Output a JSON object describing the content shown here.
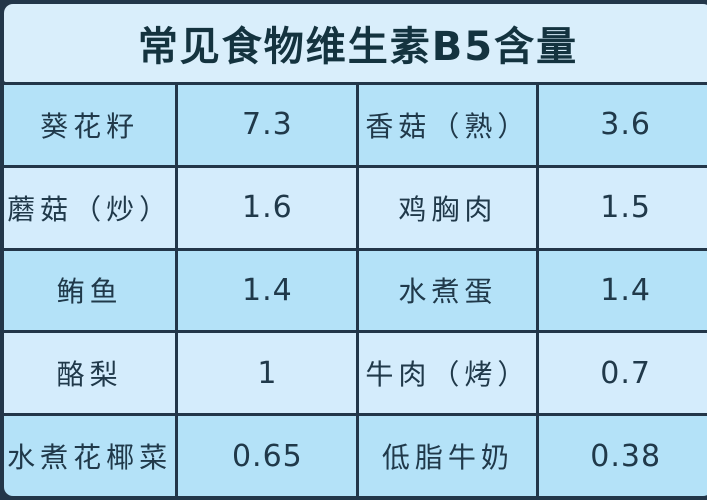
{
  "title": "常见食物维生素B5含量",
  "colors": {
    "background_border": "#223649",
    "title_background": "#d9eefb",
    "row_odd_background": "#b4e2f8",
    "row_even_background": "#d4ecfc",
    "title_text": "#14333f",
    "cell_text": "#20394a"
  },
  "table": {
    "rows": [
      {
        "cells": [
          "葵花籽",
          "7.3",
          "香菇（熟）",
          "3.6"
        ]
      },
      {
        "cells": [
          "蘑菇（炒）",
          "1.6",
          "鸡胸肉",
          "1.5"
        ]
      },
      {
        "cells": [
          "鲔鱼",
          "1.4",
          "水煮蛋",
          "1.4"
        ]
      },
      {
        "cells": [
          "酪梨",
          "1",
          "牛肉（烤）",
          "0.7"
        ]
      },
      {
        "cells": [
          "水煮花椰菜",
          "0.65",
          "低脂牛奶",
          "0.38"
        ]
      }
    ]
  },
  "chart_data": {
    "type": "table",
    "title": "常见食物维生素B5含量",
    "items": [
      {
        "food": "葵花籽",
        "value": 7.3
      },
      {
        "food": "香菇（熟）",
        "value": 3.6
      },
      {
        "food": "蘑菇（炒）",
        "value": 1.6
      },
      {
        "food": "鸡胸肉",
        "value": 1.5
      },
      {
        "food": "鲔鱼",
        "value": 1.4
      },
      {
        "food": "水煮蛋",
        "value": 1.4
      },
      {
        "food": "酪梨",
        "value": 1
      },
      {
        "food": "牛肉（烤）",
        "value": 0.7
      },
      {
        "food": "水煮花椰菜",
        "value": 0.65
      },
      {
        "food": "低脂牛奶",
        "value": 0.38
      }
    ]
  }
}
